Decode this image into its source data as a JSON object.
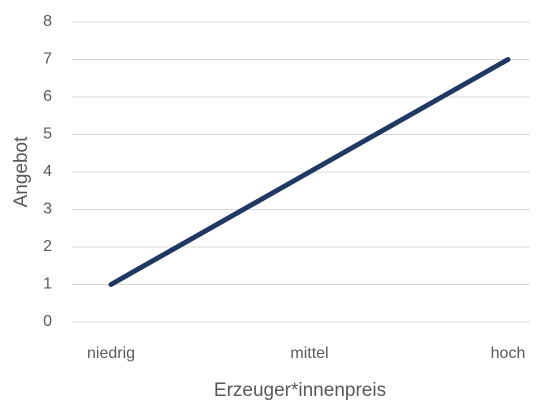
{
  "chart_data": {
    "type": "line",
    "x_label": "Erzeuger*innenpreis",
    "y_label": "Angebot",
    "categories": [
      "niedrig",
      "mittel",
      "hoch"
    ],
    "series": [
      {
        "name": "Angebot",
        "color": "#1f3864",
        "values": [
          1,
          4,
          7
        ]
      }
    ],
    "ylim": [
      0,
      8
    ],
    "yticks": [
      0,
      1,
      2,
      3,
      4,
      5,
      6,
      7,
      8
    ],
    "grid": true
  }
}
